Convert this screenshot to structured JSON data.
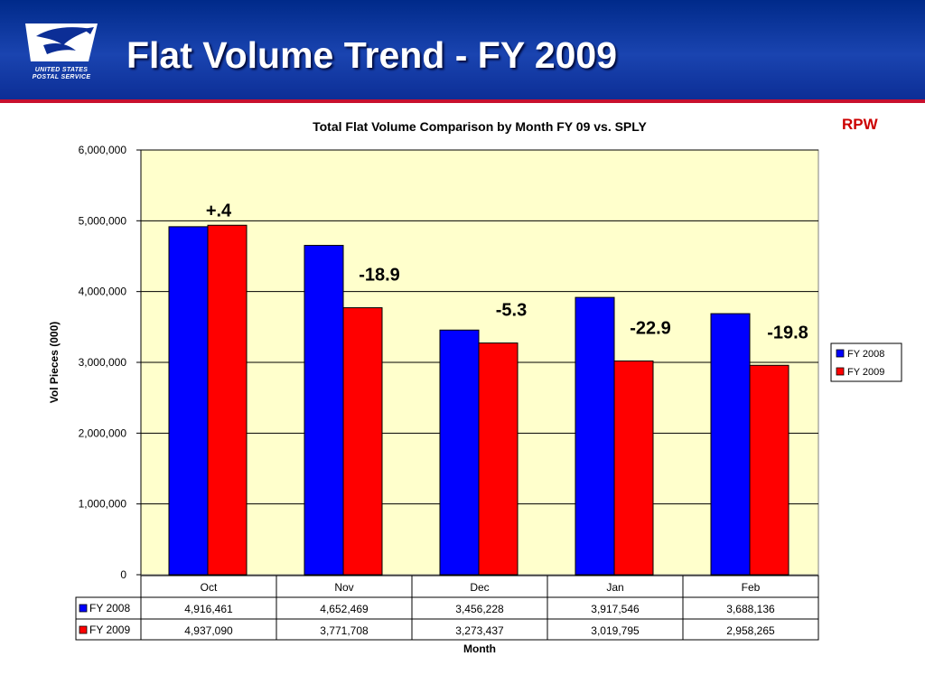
{
  "header": {
    "title": "Flat Volume Trend - FY 2009",
    "logo_line1": "UNITED STATES",
    "logo_line2": "POSTAL SERVICE"
  },
  "rpw_label": "RPW",
  "colors": {
    "fy2008": "#0000ff",
    "fy2009": "#ff0000",
    "plot_bg": "#ffffcc",
    "banner": "#0c2e96"
  },
  "chart_data": {
    "type": "bar",
    "title": "Total Flat Volume Comparison by Month FY 09 vs. SPLY",
    "xlabel": "Month",
    "ylabel": "Vol Pieces (000)",
    "ylim": [
      0,
      6000000
    ],
    "yticks": [
      0,
      1000000,
      2000000,
      3000000,
      4000000,
      5000000,
      6000000
    ],
    "ytick_labels": [
      "0",
      "1,000,000",
      "2,000,000",
      "3,000,000",
      "4,000,000",
      "5,000,000",
      "6,000,000"
    ],
    "grid": true,
    "legend_position": "right",
    "categories": [
      "Oct",
      "Nov",
      "Dec",
      "Jan",
      "Feb"
    ],
    "series": [
      {
        "name": "FY 2008",
        "color": "#0000ff",
        "values": [
          4916461,
          4652469,
          3456228,
          3917546,
          3688136
        ],
        "labels": [
          "4,916,461",
          "4,652,469",
          "3,456,228",
          "3,917,546",
          "3,688,136"
        ]
      },
      {
        "name": "FY 2009",
        "color": "#ff0000",
        "values": [
          4937090,
          3771708,
          3273437,
          3019795,
          2958265
        ],
        "labels": [
          "4,937,090",
          "3,771,708",
          "3,273,437",
          "3,019,795",
          "2,958,265"
        ]
      }
    ],
    "annotations": [
      "+.4",
      "-18.9",
      "-5.3",
      "-22.9",
      "-19.8"
    ]
  }
}
